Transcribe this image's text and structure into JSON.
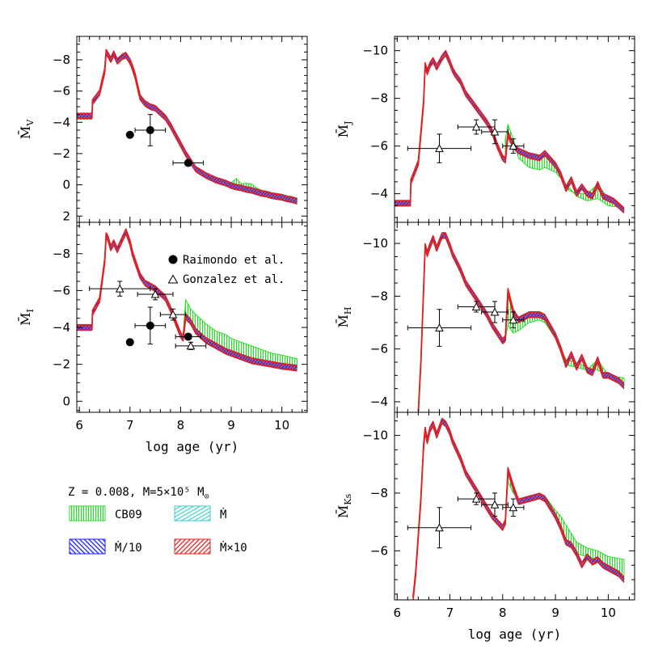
{
  "figure": {
    "colors": {
      "cb09": "#22dd22",
      "mdot": "#33cccc",
      "mdot10": "#1a1aff",
      "mdotx10": "#e02020",
      "points": "#000000"
    },
    "panel_legend": {
      "raimondo": "Raimondo et al.",
      "gonzalez": "Gonzalez et al."
    },
    "bottom_legend": {
      "params": "Z = 0.008, M=5×10⁵ M",
      "cb09": "CB09",
      "mdot": "Ṁ",
      "mdot10": "Ṁ/10",
      "mdotx10": "Ṁ×10"
    }
  },
  "chart_data": [
    {
      "id": "MV",
      "type": "line",
      "ylabel": "M̄V",
      "x_label": "",
      "xlim": [
        5.95,
        10.5
      ],
      "ylim": [
        2.4,
        -9.5
      ],
      "xticks": [
        6,
        7,
        8,
        9,
        10
      ],
      "yticks": [
        -8,
        -6,
        -4,
        -2,
        0,
        2
      ],
      "series": [
        {
          "name": "Ṁ×10",
          "x": [
            5.95,
            6.25,
            6.26,
            6.4,
            6.5,
            6.53,
            6.57,
            6.62,
            6.68,
            6.75,
            6.85,
            6.92,
            7.0,
            7.05,
            7.1,
            7.2,
            7.3,
            7.4,
            7.5,
            7.6,
            7.7,
            7.8,
            7.9,
            8.0,
            8.1,
            8.2,
            8.3,
            8.5,
            8.7,
            8.9,
            9.0,
            9.1,
            9.2,
            9.3,
            9.4,
            9.5,
            9.6,
            9.7,
            9.8,
            9.9,
            10.0,
            10.1,
            10.2,
            10.3
          ],
          "y": [
            -4.4,
            -4.4,
            -5.3,
            -5.9,
            -7.3,
            -8.5,
            -8.3,
            -8.0,
            -8.4,
            -7.9,
            -8.2,
            -8.3,
            -7.9,
            -7.5,
            -7.0,
            -5.6,
            -5.2,
            -5.0,
            -4.9,
            -4.6,
            -4.3,
            -3.8,
            -3.2,
            -2.6,
            -2.0,
            -1.5,
            -1.0,
            -0.6,
            -0.3,
            -0.1,
            0.05,
            0.15,
            0.2,
            0.3,
            0.35,
            0.45,
            0.55,
            0.6,
            0.7,
            0.75,
            0.8,
            0.9,
            0.95,
            1.05
          ]
        },
        {
          "name": "CB09",
          "x": [
            8.4,
            8.6,
            8.8,
            9.0,
            9.1,
            9.2,
            9.3,
            9.4,
            9.5,
            9.6,
            9.7,
            9.8,
            9.9,
            10.0,
            10.1,
            10.2,
            10.3
          ],
          "y": [
            -0.75,
            -0.4,
            -0.25,
            -0.15,
            -0.4,
            -0.05,
            -0.1,
            -0.05,
            0.2,
            0.35,
            0.4,
            0.5,
            0.55,
            0.6,
            0.7,
            0.75,
            0.85
          ]
        }
      ],
      "raimondo": [
        {
          "x": 7.0,
          "y": -3.2,
          "xerr": 0.0,
          "yerr": 0.0
        },
        {
          "x": 7.4,
          "y": -3.5,
          "xerr": 0.3,
          "yerr": 1.0
        },
        {
          "x": 8.15,
          "y": -1.4,
          "xerr": 0.3,
          "yerr": 0.0
        }
      ],
      "gonzalez": []
    },
    {
      "id": "MI",
      "type": "line",
      "ylabel": "M̄I",
      "x_label": "log age (yr)",
      "xlim": [
        5.95,
        10.5
      ],
      "ylim": [
        0.6,
        -9.7
      ],
      "xticks": [
        6,
        7,
        8,
        9,
        10
      ],
      "yticks": [
        -8,
        -6,
        -4,
        -2,
        0
      ],
      "series": [
        {
          "name": "Ṁ×10",
          "x": [
            5.95,
            6.25,
            6.26,
            6.4,
            6.5,
            6.53,
            6.57,
            6.62,
            6.68,
            6.75,
            6.85,
            6.92,
            7.0,
            7.05,
            7.1,
            7.2,
            7.3,
            7.5,
            7.7,
            7.8,
            7.9,
            8.0,
            8.05,
            8.1,
            8.2,
            8.3,
            8.5,
            8.7,
            8.9,
            9.0,
            9.2,
            9.4,
            9.6,
            9.8,
            10.0,
            10.3
          ],
          "y": [
            -4.0,
            -4.0,
            -4.8,
            -5.5,
            -7.6,
            -9.0,
            -8.8,
            -8.3,
            -8.6,
            -8.2,
            -8.8,
            -9.2,
            -8.6,
            -8.0,
            -7.6,
            -6.8,
            -6.4,
            -6.1,
            -5.6,
            -5.0,
            -4.3,
            -3.6,
            -3.4,
            -4.6,
            -4.3,
            -3.8,
            -3.3,
            -3.0,
            -2.7,
            -2.6,
            -2.4,
            -2.2,
            -2.1,
            -2.0,
            -1.9,
            -1.8
          ]
        },
        {
          "name": "CB09",
          "x": [
            8.05,
            8.1,
            8.2,
            8.3,
            8.5,
            8.7,
            8.9,
            9.0,
            9.2,
            9.4,
            9.6,
            9.8,
            10.0,
            10.3
          ],
          "y": [
            -3.7,
            -5.5,
            -5.0,
            -4.7,
            -4.2,
            -3.8,
            -3.6,
            -3.4,
            -3.2,
            -3.0,
            -2.8,
            -2.6,
            -2.5,
            -2.3
          ]
        }
      ],
      "raimondo": [
        {
          "x": 7.0,
          "y": -3.2,
          "xerr": 0.0,
          "yerr": 0.0
        },
        {
          "x": 7.4,
          "y": -4.1,
          "xerr": 0.3,
          "yerr": 1.0
        },
        {
          "x": 8.15,
          "y": -3.5,
          "xerr": 0.25,
          "yerr": 0.0
        }
      ],
      "gonzalez": [
        {
          "x": 6.8,
          "y": -6.1,
          "xerr": 0.6,
          "yerr": 0.4
        },
        {
          "x": 7.5,
          "y": -5.8,
          "xerr": 0.35,
          "yerr": 0.3
        },
        {
          "x": 7.85,
          "y": -4.7,
          "xerr": 0.25,
          "yerr": 0.3
        },
        {
          "x": 8.2,
          "y": -3.0,
          "xerr": 0.3,
          "yerr": 0.2
        }
      ]
    },
    {
      "id": "MJ",
      "type": "line",
      "ylabel": "M̄J",
      "x_label": "",
      "xlim": [
        5.95,
        10.5
      ],
      "ylim": [
        -2.8,
        -10.6
      ],
      "xticks": [
        6,
        7,
        8,
        9,
        10
      ],
      "yticks": [
        -10,
        -8,
        -6,
        -4
      ],
      "series": [
        {
          "name": "Ṁ×10",
          "x": [
            5.95,
            6.25,
            6.26,
            6.4,
            6.5,
            6.53,
            6.57,
            6.62,
            6.68,
            6.75,
            6.85,
            6.92,
            7.0,
            7.05,
            7.1,
            7.2,
            7.3,
            7.5,
            7.7,
            7.8,
            7.9,
            8.0,
            8.05,
            8.1,
            8.2,
            8.3,
            8.5,
            8.7,
            8.8,
            9.0,
            9.1,
            9.2,
            9.3,
            9.4,
            9.5,
            9.6,
            9.7,
            9.8,
            9.9,
            10.0,
            10.1,
            10.2,
            10.3
          ],
          "y": [
            -3.6,
            -3.6,
            -4.5,
            -5.3,
            -7.8,
            -9.4,
            -9.1,
            -9.4,
            -9.6,
            -9.3,
            -9.7,
            -9.9,
            -9.5,
            -9.2,
            -9.0,
            -8.7,
            -8.2,
            -7.6,
            -7.0,
            -6.6,
            -6.0,
            -5.5,
            -5.4,
            -6.5,
            -6.0,
            -5.8,
            -5.6,
            -5.5,
            -5.7,
            -5.2,
            -4.8,
            -4.2,
            -4.6,
            -4.0,
            -4.3,
            -4.0,
            -3.9,
            -4.4,
            -3.9,
            -3.8,
            -3.7,
            -3.5,
            -3.3
          ]
        },
        {
          "name": "CB09",
          "x": [
            8.05,
            8.1,
            8.2,
            8.3,
            8.5,
            8.7,
            8.8,
            9.0,
            9.2,
            9.4,
            9.6,
            9.8,
            10.0,
            10.3
          ],
          "y": [
            -6.3,
            -6.9,
            -6.3,
            -5.5,
            -5.1,
            -5.0,
            -5.1,
            -4.9,
            -4.4,
            -3.9,
            -3.7,
            -3.8,
            -3.5,
            -3.4
          ]
        }
      ],
      "raimondo": [],
      "gonzalez": [
        {
          "x": 6.8,
          "y": -5.9,
          "xerr": 0.6,
          "yerr": 0.6
        },
        {
          "x": 7.5,
          "y": -6.8,
          "xerr": 0.35,
          "yerr": 0.3
        },
        {
          "x": 7.85,
          "y": -6.6,
          "xerr": 0.25,
          "yerr": 0.5
        },
        {
          "x": 8.2,
          "y": -6.0,
          "xerr": 0.2,
          "yerr": 0.3
        }
      ]
    },
    {
      "id": "MH",
      "type": "line",
      "ylabel": "M̄H",
      "x_label": "",
      "xlim": [
        5.95,
        10.5
      ],
      "ylim": [
        -3.6,
        -10.8
      ],
      "xticks": [
        6,
        7,
        8,
        9,
        10
      ],
      "yticks": [
        -10,
        -8,
        -6,
        -4
      ],
      "series": [
        {
          "name": "Ṁ×10",
          "x": [
            6.4,
            6.45,
            6.5,
            6.53,
            6.57,
            6.62,
            6.68,
            6.75,
            6.85,
            6.92,
            7.0,
            7.05,
            7.1,
            7.2,
            7.3,
            7.5,
            7.7,
            7.8,
            7.9,
            8.0,
            8.05,
            8.1,
            8.2,
            8.3,
            8.5,
            8.7,
            8.8,
            9.0,
            9.1,
            9.2,
            9.3,
            9.4,
            9.5,
            9.6,
            9.7,
            9.8,
            9.9,
            10.0,
            10.1,
            10.2,
            10.3
          ],
          "y": [
            -3.6,
            -5.5,
            -8.2,
            -9.9,
            -9.6,
            -9.9,
            -10.2,
            -9.8,
            -10.3,
            -10.3,
            -9.9,
            -9.6,
            -9.4,
            -9.0,
            -8.5,
            -7.9,
            -7.3,
            -6.9,
            -6.6,
            -6.3,
            -6.4,
            -8.2,
            -7.4,
            -7.1,
            -7.3,
            -7.3,
            -7.2,
            -6.5,
            -6.0,
            -5.4,
            -5.8,
            -5.3,
            -5.7,
            -5.2,
            -5.1,
            -5.6,
            -5.0,
            -5.0,
            -4.9,
            -4.8,
            -4.6
          ]
        },
        {
          "name": "CB09",
          "x": [
            8.05,
            8.1,
            8.2,
            8.3,
            8.5,
            8.7,
            8.8,
            9.0,
            9.2,
            9.4,
            9.6,
            9.8,
            10.0,
            10.3
          ],
          "y": [
            -6.4,
            -6.9,
            -6.6,
            -6.7,
            -7.0,
            -7.1,
            -7.0,
            -6.4,
            -5.6,
            -5.5,
            -5.3,
            -5.2,
            -5.0,
            -4.9
          ]
        }
      ],
      "raimondo": [],
      "gonzalez": [
        {
          "x": 6.8,
          "y": -6.8,
          "xerr": 0.6,
          "yerr": 0.7
        },
        {
          "x": 7.5,
          "y": -7.6,
          "xerr": 0.35,
          "yerr": 0.2
        },
        {
          "x": 7.85,
          "y": -7.4,
          "xerr": 0.25,
          "yerr": 0.4
        },
        {
          "x": 8.2,
          "y": -7.1,
          "xerr": 0.2,
          "yerr": 0.3
        }
      ]
    },
    {
      "id": "MKs",
      "type": "line",
      "ylabel": "M̄Ks",
      "x_label": "log age (yr)",
      "xlim": [
        5.95,
        10.5
      ],
      "ylim": [
        -4.3,
        -10.8
      ],
      "xticks": [
        6,
        7,
        8,
        9,
        10
      ],
      "yticks": [
        -10,
        -8,
        -6
      ],
      "series": [
        {
          "name": "Ṁ×10",
          "x": [
            6.3,
            6.35,
            6.45,
            6.5,
            6.53,
            6.57,
            6.62,
            6.68,
            6.75,
            6.85,
            6.92,
            7.0,
            7.05,
            7.1,
            7.2,
            7.3,
            7.5,
            7.7,
            7.8,
            7.9,
            8.0,
            8.05,
            8.1,
            8.2,
            8.3,
            8.5,
            8.7,
            8.8,
            9.0,
            9.1,
            9.2,
            9.3,
            9.4,
            9.5,
            9.6,
            9.7,
            9.8,
            9.9,
            10.0,
            10.1,
            10.2,
            10.3
          ],
          "y": [
            -4.3,
            -5.2,
            -7.8,
            -9.6,
            -10.2,
            -9.8,
            -10.2,
            -10.4,
            -10.0,
            -10.5,
            -10.4,
            -10.1,
            -9.8,
            -9.6,
            -9.2,
            -8.7,
            -8.1,
            -7.5,
            -7.2,
            -7.0,
            -6.8,
            -7.0,
            -8.8,
            -8.2,
            -7.7,
            -7.8,
            -7.9,
            -7.8,
            -7.2,
            -6.8,
            -6.3,
            -6.2,
            -5.9,
            -5.5,
            -5.8,
            -5.6,
            -5.7,
            -5.5,
            -5.4,
            -5.3,
            -5.2,
            -5.0
          ]
        },
        {
          "name": "CB09",
          "x": [
            8.05,
            8.1,
            8.2,
            8.3,
            8.5,
            8.7,
            8.8,
            9.0,
            9.1,
            9.2,
            9.3,
            9.4,
            9.6,
            9.8,
            10.0,
            10.3
          ],
          "y": [
            -7.0,
            -8.4,
            -8.0,
            -7.8,
            -7.7,
            -7.9,
            -7.9,
            -7.4,
            -7.2,
            -6.9,
            -6.6,
            -6.3,
            -6.1,
            -6.0,
            -5.8,
            -5.7
          ]
        }
      ],
      "raimondo": [],
      "gonzalez": [
        {
          "x": 6.8,
          "y": -6.8,
          "xerr": 0.6,
          "yerr": 0.7
        },
        {
          "x": 7.5,
          "y": -7.8,
          "xerr": 0.35,
          "yerr": 0.2
        },
        {
          "x": 7.85,
          "y": -7.6,
          "xerr": 0.25,
          "yerr": 0.4
        },
        {
          "x": 8.2,
          "y": -7.5,
          "xerr": 0.2,
          "yerr": 0.3
        }
      ]
    }
  ]
}
